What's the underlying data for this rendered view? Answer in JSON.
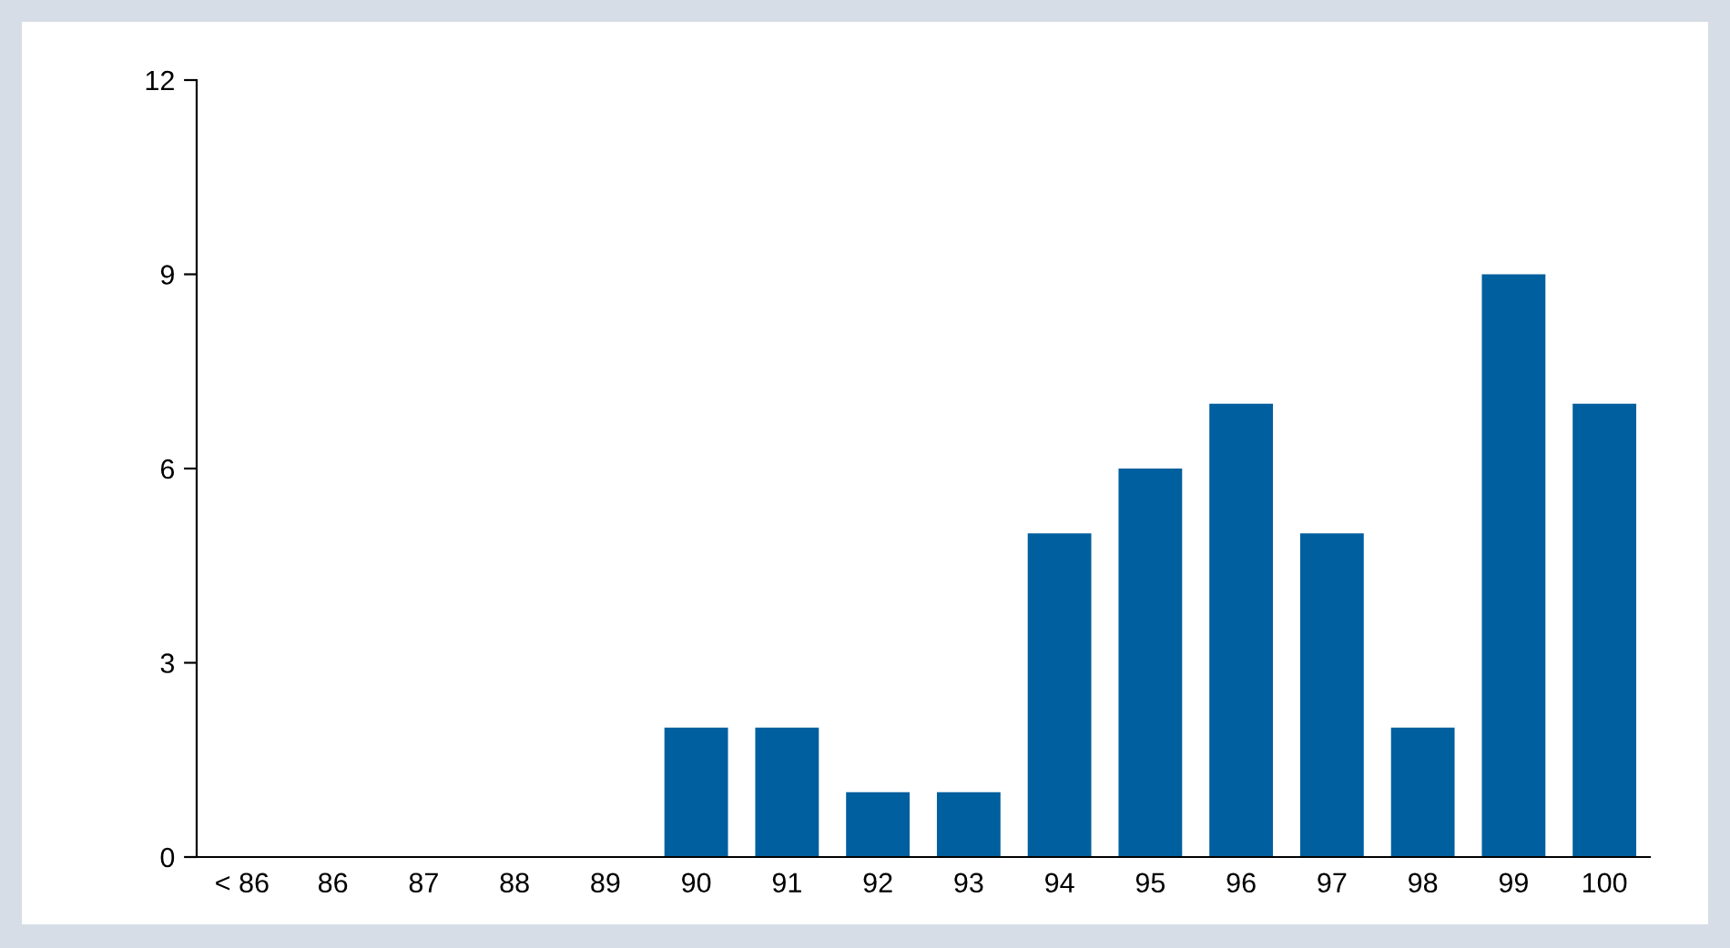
{
  "chart_data": {
    "type": "bar",
    "categories": [
      "< 86",
      "86",
      "87",
      "88",
      "89",
      "90",
      "91",
      "92",
      "93",
      "94",
      "95",
      "96",
      "97",
      "98",
      "99",
      "100"
    ],
    "values": [
      0,
      0,
      0,
      0,
      0,
      2,
      2,
      1,
      1,
      5,
      6,
      7,
      5,
      2,
      9,
      7
    ],
    "color": "#005f9e",
    "ylim": [
      0,
      12
    ],
    "yticks": [
      0,
      3,
      6,
      9,
      12
    ],
    "grid": false
  }
}
